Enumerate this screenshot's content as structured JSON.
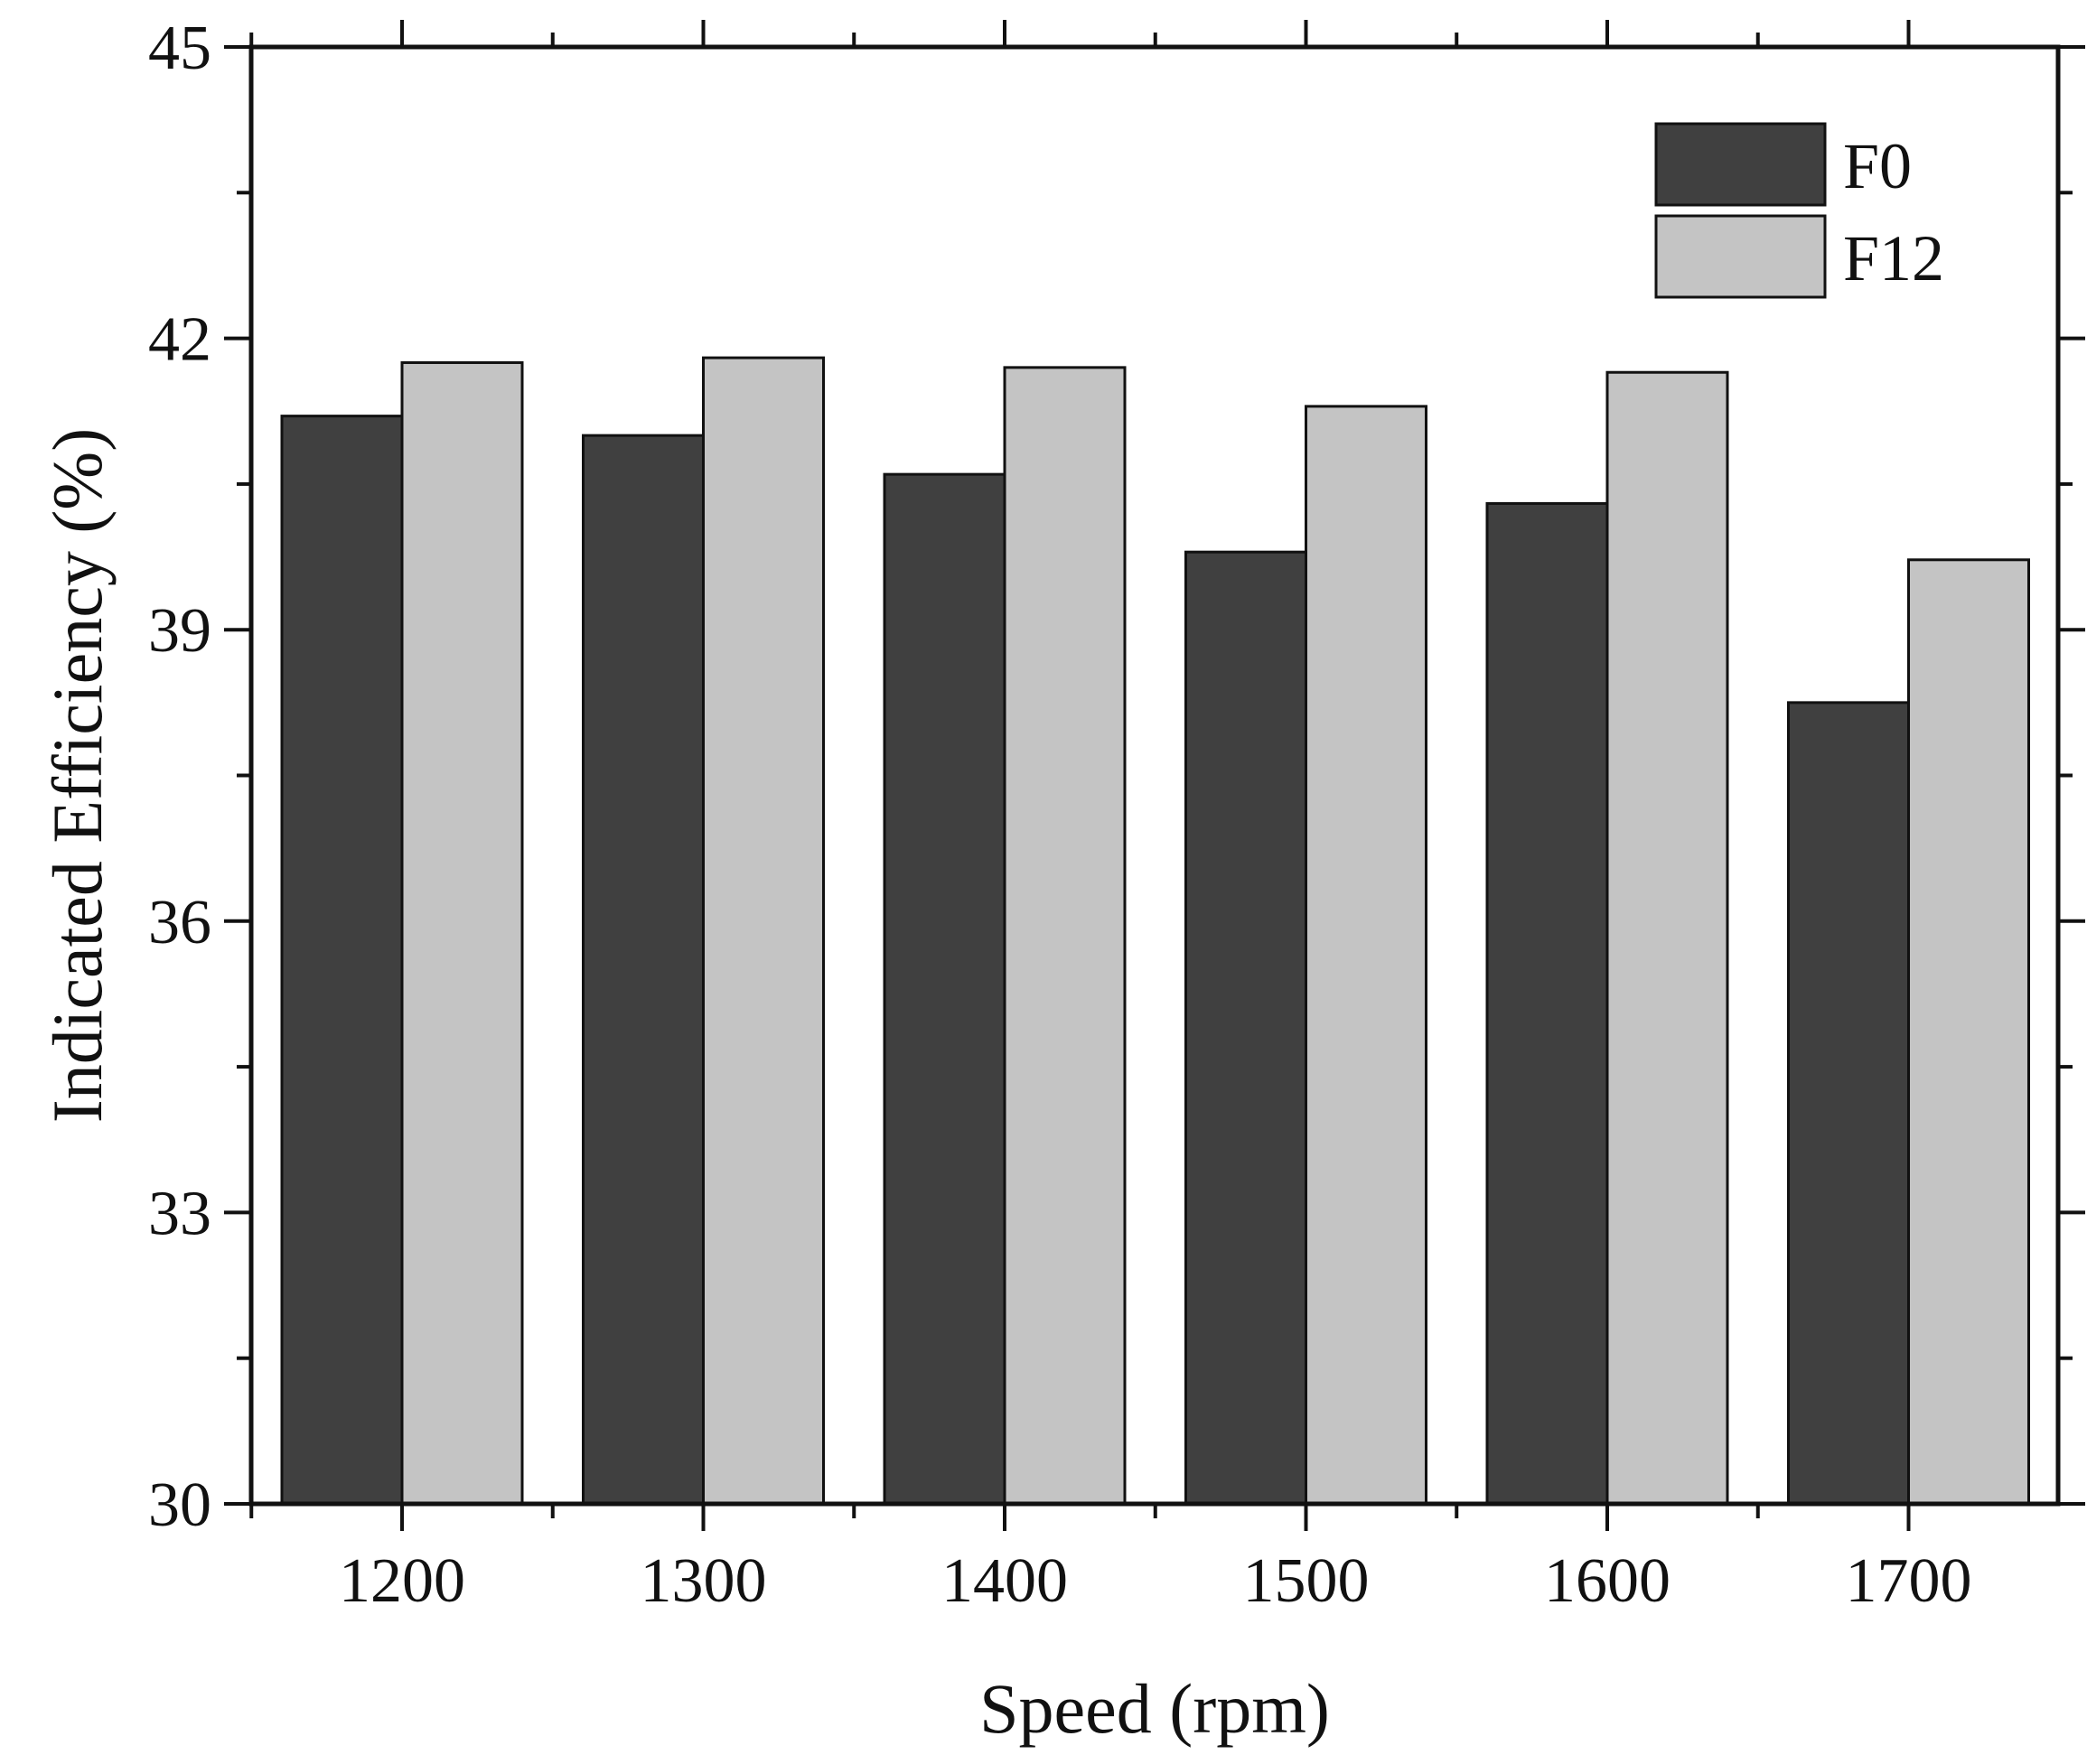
{
  "chart_data": {
    "type": "bar",
    "title": "",
    "xlabel": "Speed (rpm)",
    "ylabel": "Indicated Efficiency (%)",
    "categories": [
      "1200",
      "1300",
      "1400",
      "1500",
      "1600",
      "1700"
    ],
    "series": [
      {
        "name": "F0",
        "color": "#404040",
        "values": [
          41.2,
          41.0,
          40.6,
          39.8,
          40.3,
          38.25
        ]
      },
      {
        "name": "F12",
        "color": "#c4c4c4",
        "values": [
          41.75,
          41.8,
          41.7,
          41.3,
          41.65,
          39.72
        ]
      }
    ],
    "ylim": [
      30,
      45
    ],
    "yticks": [
      "30",
      "33",
      "36",
      "39",
      "42",
      "45"
    ],
    "grid": false,
    "legend_position": "top-right"
  }
}
